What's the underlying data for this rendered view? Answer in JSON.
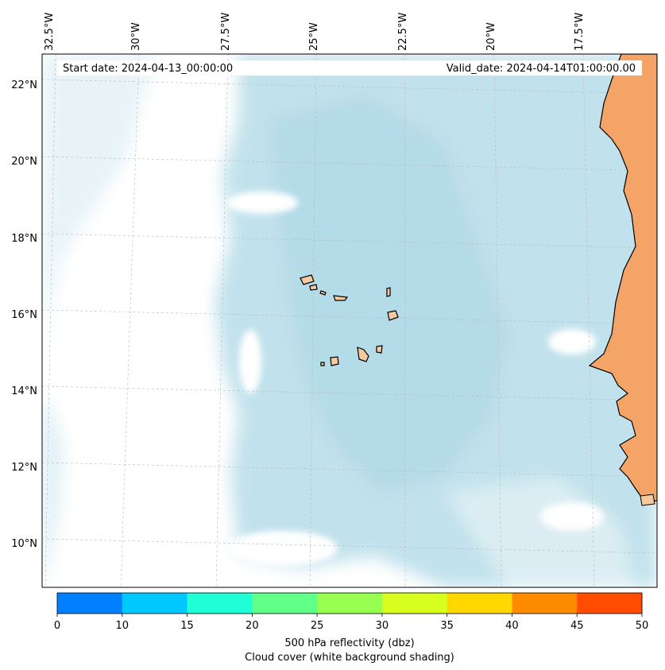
{
  "header": {
    "start_date": "Start date: 2024-04-13_00:00:00",
    "valid_date": "Valid_date: 2024-04-14T01:00:00.00"
  },
  "map": {
    "longitude_labels": [
      "32.5°W",
      "30°W",
      "27.5°W",
      "25°W",
      "22.5°W",
      "20°W",
      "17.5°W"
    ],
    "latitude_labels": [
      "22°N",
      "20°N",
      "18°N",
      "16°N",
      "14°N",
      "12°N",
      "10°N"
    ],
    "ocean_color": "#ffffff",
    "land_color": "#f5c9a0",
    "land_cloud_color": "#f4a466",
    "cloud_color": "#add8e6",
    "coastline_color": "#000000"
  },
  "colorbar": {
    "ticks": [
      "0",
      "10",
      "15",
      "20",
      "25",
      "30",
      "35",
      "40",
      "45",
      "50"
    ],
    "colors": [
      "#0080ff",
      "#00c8ff",
      "#20ffd8",
      "#60ff88",
      "#98ff50",
      "#d8ff20",
      "#ffd800",
      "#ff8c00",
      "#ff4c00"
    ],
    "label_line1": "500 hPa reflectivity (dbz)",
    "label_line2": "Cloud cover (white background shading)"
  }
}
